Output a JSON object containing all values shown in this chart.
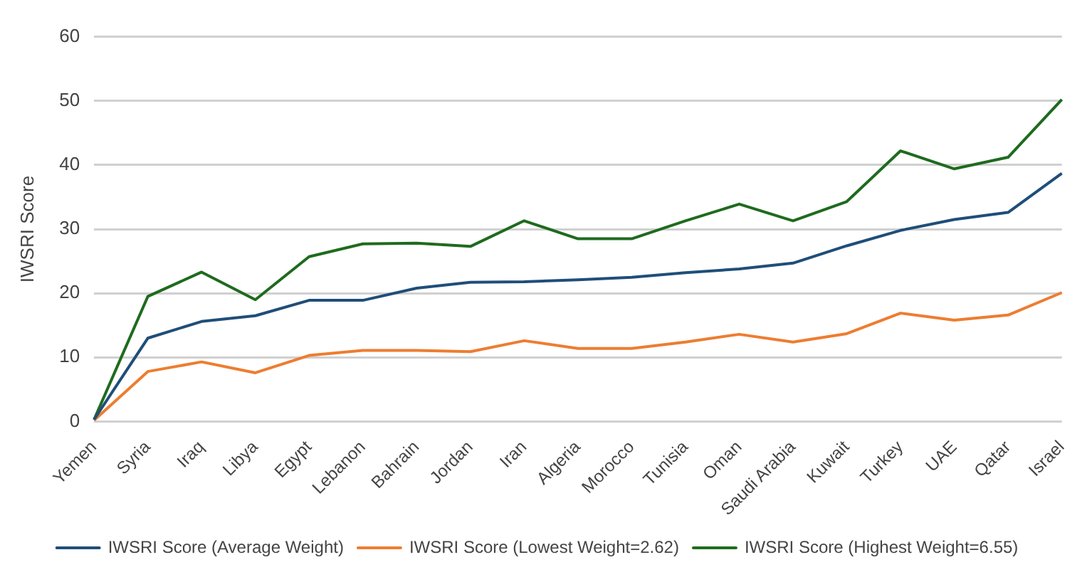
{
  "chart_data": {
    "type": "line",
    "ylabel": "IWSRI Score",
    "categories": [
      "Yemen",
      "Syria",
      "Iraq",
      "Libya",
      "Egypt",
      "Lebanon",
      "Bahrain",
      "Jordan",
      "Iran",
      "Algeria",
      "Morocco",
      "Tunisia",
      "Oman",
      "Saudi Arabia",
      "Kuwait",
      "Turkey",
      "UAE",
      "Qatar",
      "Israel"
    ],
    "series": [
      {
        "name": "IWSRI Score (Average Weight)",
        "color": "#1f4e79",
        "values": [
          0.3,
          13,
          15.6,
          16.5,
          18.9,
          18.9,
          20.8,
          21.7,
          21.8,
          22.1,
          22.5,
          23.2,
          23.8,
          24.7,
          27.4,
          29.8,
          31.5,
          32.6,
          38.7
        ]
      },
      {
        "name": "IWSRI Score (Lowest Weight=2.62)",
        "color": "#ed7d31",
        "values": [
          0.2,
          7.8,
          9.3,
          7.6,
          10.3,
          11.1,
          11.1,
          10.9,
          12.6,
          11.4,
          11.4,
          12.4,
          13.6,
          12.4,
          13.7,
          16.9,
          15.8,
          16.6,
          20.1
        ]
      },
      {
        "name": "IWSRI Score (Highest Weight=6.55)",
        "color": "#1e6b1e",
        "values": [
          0.3,
          19.5,
          23.3,
          19.0,
          25.7,
          27.7,
          27.8,
          27.3,
          31.3,
          28.5,
          28.5,
          31.3,
          33.9,
          31.3,
          34.3,
          42.2,
          39.4,
          41.2,
          50.2
        ]
      }
    ],
    "ylim": [
      0,
      60
    ],
    "yticks": [
      0,
      10,
      20,
      30,
      40,
      50,
      60
    ],
    "grid": "y",
    "legend": "bottom",
    "marker": "none",
    "line_style": "solid"
  }
}
